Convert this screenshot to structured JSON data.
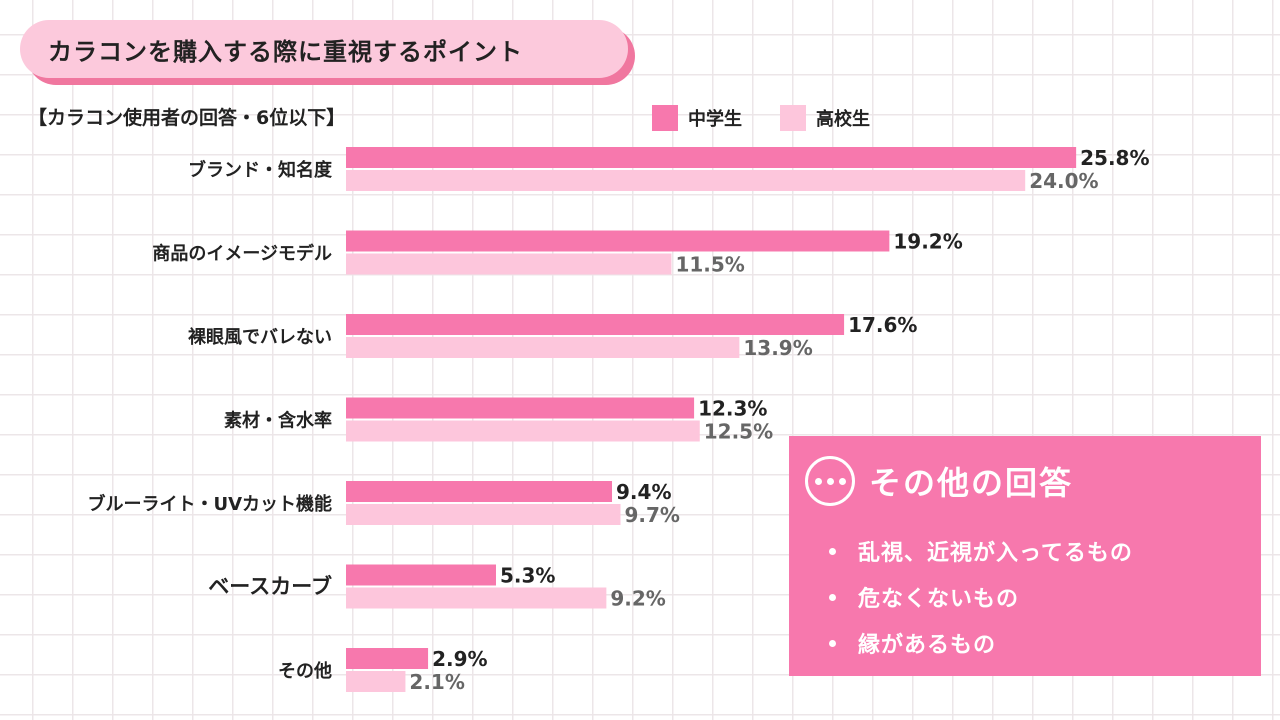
{
  "header": {
    "title": "カラコンを購入する際に重視するポイント",
    "subtitle": "【カラコン使用者の回答・6位以下】"
  },
  "legend": {
    "series1": "中学生",
    "series2": "高校生"
  },
  "colors": {
    "series1": "#f778ad",
    "series2": "#fdc6dc",
    "label2": "#666666"
  },
  "chart_data": {
    "type": "bar",
    "orientation": "horizontal",
    "title": "カラコンを購入する際に重視するポイント",
    "subtitle": "【カラコン使用者の回答・6位以下】",
    "unit": "%",
    "categories": [
      "ブランド・知名度",
      "商品のイメージモデル",
      "裸眼風でバレない",
      "素材・含水率",
      "ブルーライト・UVカット機能",
      "ベースカーブ",
      "その他"
    ],
    "series": [
      {
        "name": "中学生",
        "values": [
          25.8,
          19.2,
          17.6,
          12.3,
          9.4,
          5.3,
          2.9
        ]
      },
      {
        "name": "高校生",
        "values": [
          24.0,
          11.5,
          13.9,
          12.5,
          9.7,
          9.2,
          2.1
        ]
      }
    ],
    "legend_position": "top-right",
    "grid": false
  },
  "other_answers": {
    "title": "その他の回答",
    "items": [
      "乱視、近視が入ってるもの",
      "危なくないもの",
      "縁があるもの"
    ]
  }
}
